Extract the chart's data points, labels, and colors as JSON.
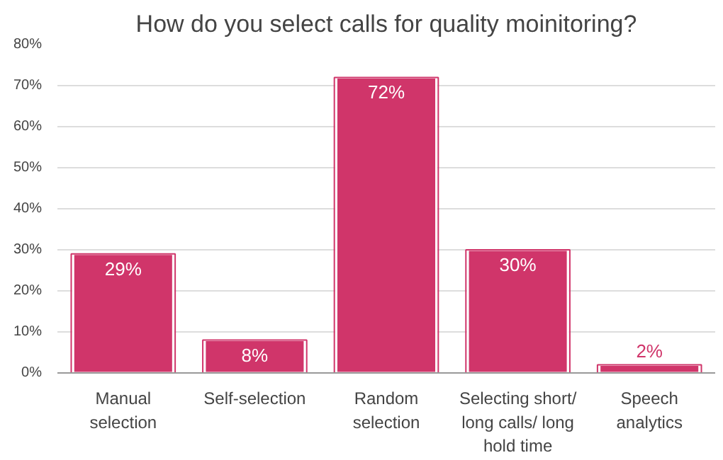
{
  "chart_data": {
    "type": "bar",
    "title": "How do you select calls for quality moinitoring?",
    "categories": [
      "Manual\nselection",
      "Self-selection",
      "Random\nselection",
      "Selecting short/\nlong calls/ long\nhold time",
      "Speech\nanalytics"
    ],
    "values": [
      29,
      8,
      72,
      30,
      2
    ],
    "color": "#d0356a",
    "value_labels": [
      "29%",
      "8%",
      "72%",
      "30%",
      "2%"
    ],
    "ylim": [
      0,
      80
    ],
    "yticks": [
      {
        "value": 0,
        "label": "0%"
      },
      {
        "value": 10,
        "label": "10%"
      },
      {
        "value": 20,
        "label": "20%"
      },
      {
        "value": 30,
        "label": "30%"
      },
      {
        "value": 40,
        "label": "40%"
      },
      {
        "value": 50,
        "label": "50%"
      },
      {
        "value": 60,
        "label": "60%"
      },
      {
        "value": 70,
        "label": "70%"
      },
      {
        "value": 80,
        "label": "80%"
      }
    ],
    "grid": "y"
  }
}
